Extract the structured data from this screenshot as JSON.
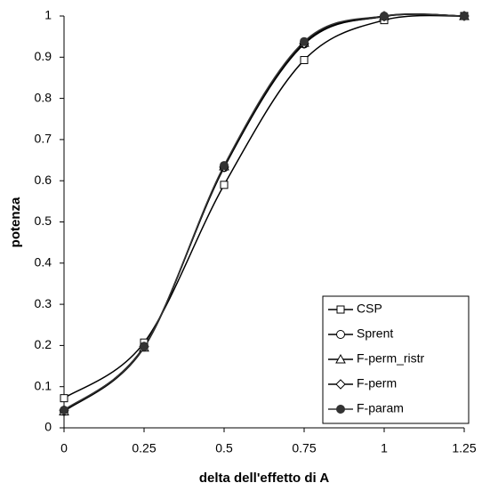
{
  "chart_data": {
    "type": "line",
    "x_label": "delta dell'effetto di A",
    "y_label": "potenza",
    "x": [
      0,
      0.25,
      0.5,
      0.75,
      1,
      1.25
    ],
    "series": [
      {
        "name": "CSP",
        "color": "#000000",
        "marker": "square",
        "values": [
          0.072,
          0.207,
          0.59,
          0.893,
          0.99,
          1.0
        ]
      },
      {
        "name": "Sprent",
        "color": "#000000",
        "marker": "circle",
        "values": [
          0.04,
          0.198,
          0.632,
          0.932,
          0.999,
          1.0
        ]
      },
      {
        "name": "F-perm_ristr",
        "color": "#000000",
        "marker": "triangle",
        "values": [
          0.04,
          0.195,
          0.635,
          0.935,
          1.0,
          1.0
        ]
      },
      {
        "name": "F-perm",
        "color": "#000000",
        "marker": "diamond",
        "values": [
          0.043,
          0.197,
          0.633,
          0.933,
          0.999,
          1.0
        ]
      },
      {
        "name": "F-param",
        "color": "#333333",
        "marker": "filled-circle",
        "values": [
          0.043,
          0.197,
          0.637,
          0.938,
          1.0,
          1.0
        ]
      }
    ],
    "xlim": [
      0,
      1.25
    ],
    "xticks": [
      0,
      0.25,
      0.5,
      0.75,
      1,
      1.25
    ],
    "ylim": [
      0,
      1
    ],
    "yticks": [
      0,
      0.1,
      0.2,
      0.3,
      0.4,
      0.5,
      0.6,
      0.7,
      0.8,
      0.9,
      1
    ],
    "smooth": true,
    "grid": false,
    "legend": "lower right"
  }
}
